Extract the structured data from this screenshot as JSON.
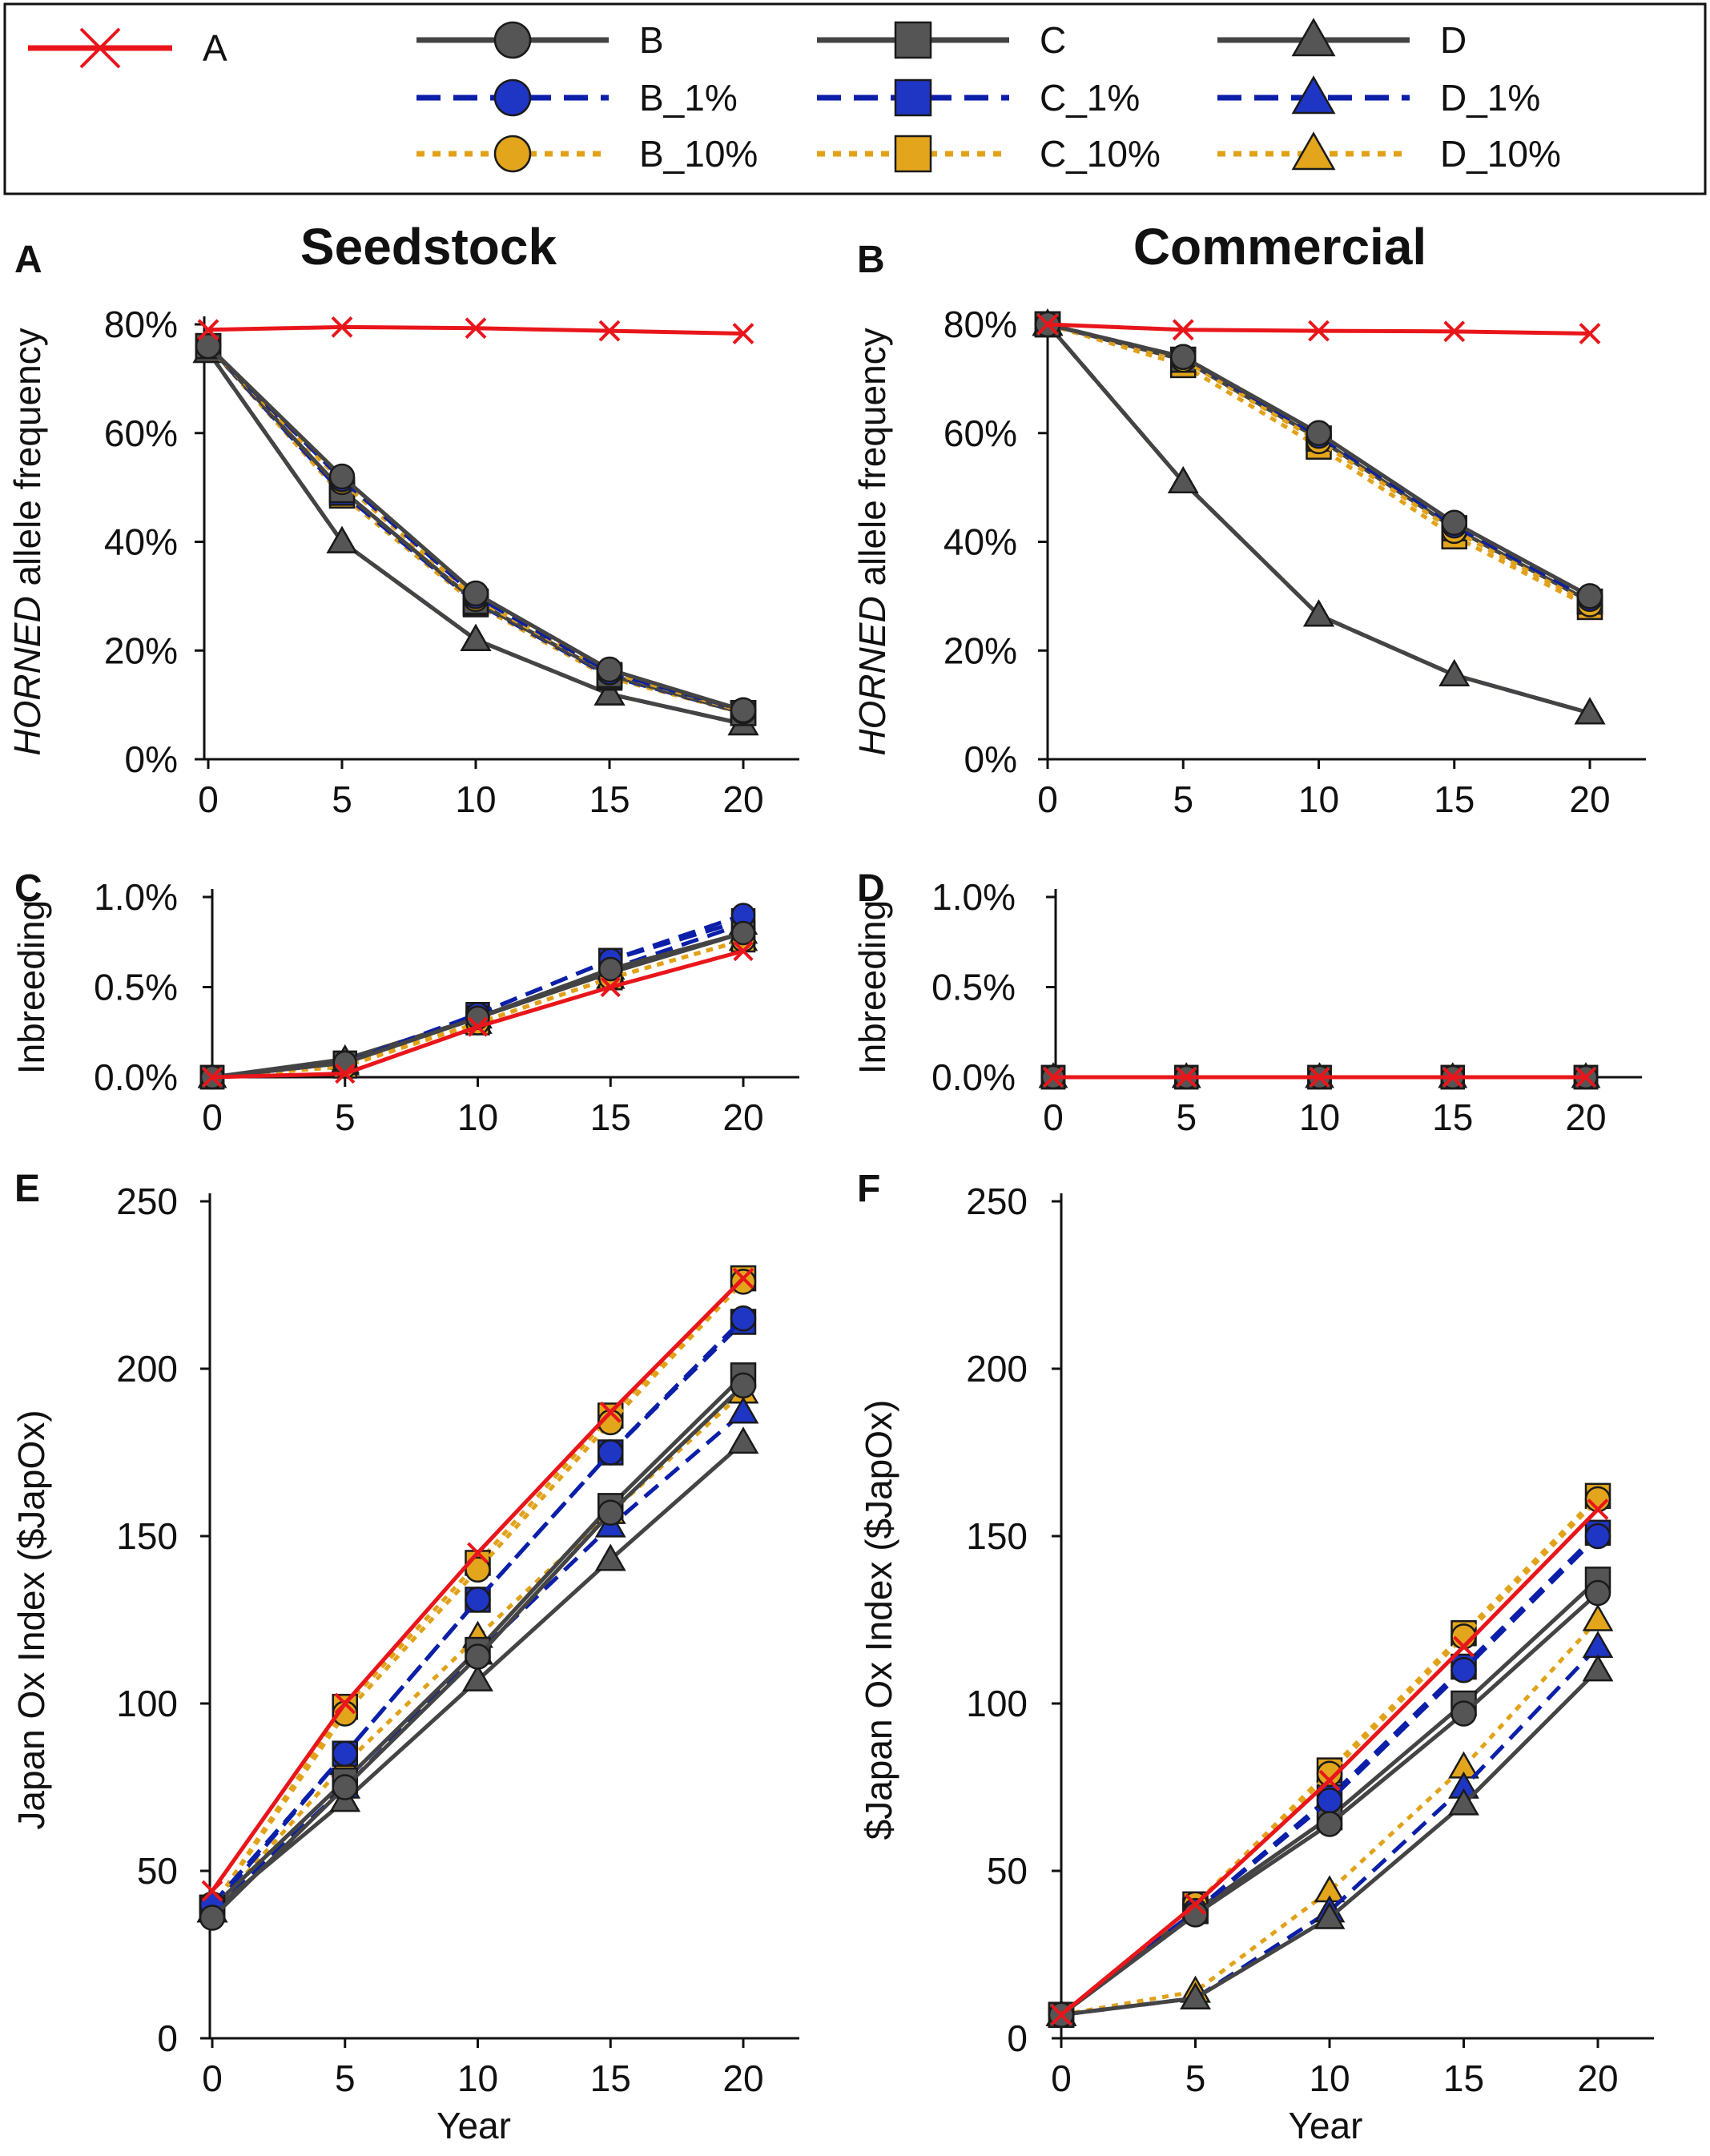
{
  "legend": {
    "entries": [
      {
        "key": "A",
        "label": "A"
      },
      {
        "key": "B",
        "label": "B"
      },
      {
        "key": "C",
        "label": "C"
      },
      {
        "key": "D",
        "label": "D"
      },
      {
        "key": "B_1%",
        "label": "B_1%"
      },
      {
        "key": "C_1%",
        "label": "C_1%"
      },
      {
        "key": "D_1%",
        "label": "D_1%"
      },
      {
        "key": "B_10%",
        "label": "B_10%"
      },
      {
        "key": "C_10%",
        "label": "C_10%"
      },
      {
        "key": "D_10%",
        "label": "D_10%"
      }
    ]
  },
  "styles": {
    "A": {
      "color": "#e8161b",
      "dash": "solid",
      "marker": "x"
    },
    "B": {
      "color": "#444444",
      "fill": "#555555",
      "dash": "solid",
      "marker": "circle"
    },
    "C": {
      "color": "#444444",
      "fill": "#555555",
      "dash": "solid",
      "marker": "square"
    },
    "D": {
      "color": "#444444",
      "fill": "#555555",
      "dash": "solid",
      "marker": "triangle"
    },
    "B_1%": {
      "color": "#0b1fa8",
      "fill": "#1f35c4",
      "dash": "dashed",
      "marker": "circle"
    },
    "C_1%": {
      "color": "#0b1fa8",
      "fill": "#1f35c4",
      "dash": "dashed",
      "marker": "square"
    },
    "D_1%": {
      "color": "#0b1fa8",
      "fill": "#1f35c4",
      "dash": "dashed",
      "marker": "triangle"
    },
    "B_10%": {
      "color": "#e1a21a",
      "fill": "#e2a51c",
      "dash": "dotted",
      "marker": "circle"
    },
    "C_10%": {
      "color": "#e1a21a",
      "fill": "#e2a51c",
      "dash": "dotted",
      "marker": "square"
    },
    "D_10%": {
      "color": "#e1a21a",
      "fill": "#e2a51c",
      "dash": "dotted",
      "marker": "triangle"
    }
  },
  "column_titles": {
    "left": "Seedstock",
    "right": "Commercial"
  },
  "chart_data": [
    {
      "panel": "A",
      "type": "line",
      "title": "Seedstock",
      "xlabel": "",
      "ylabel_italic": "HORNED",
      "ylabel_rest": " allele frequency",
      "x": [
        0,
        5,
        10,
        15,
        20
      ],
      "ylim": [
        0,
        80
      ],
      "yticks": [
        0,
        20,
        40,
        60,
        80
      ],
      "ytick_labels": [
        "0%",
        "20%",
        "40%",
        "60%",
        "80%"
      ],
      "xticks": [
        0,
        5,
        10,
        15,
        20
      ],
      "xtick_labels": [
        "0",
        "5",
        "10",
        "15",
        "20"
      ],
      "series": [
        {
          "name": "A",
          "values": [
            79,
            79.5,
            79.3,
            78.8,
            78.3
          ]
        },
        {
          "name": "B",
          "values": [
            76,
            52,
            30.5,
            16.5,
            9
          ]
        },
        {
          "name": "B_1%",
          "values": [
            76,
            51.5,
            30,
            16,
            9
          ]
        },
        {
          "name": "B_10%",
          "values": [
            76,
            51,
            29.5,
            16,
            8.8
          ]
        },
        {
          "name": "C",
          "values": [
            76,
            49.5,
            29,
            15.5,
            8.5
          ]
        },
        {
          "name": "C_1%",
          "values": [
            76,
            49,
            28.8,
            15.3,
            8.5
          ]
        },
        {
          "name": "C_10%",
          "values": [
            76,
            48.5,
            28.5,
            15,
            8.5
          ]
        },
        {
          "name": "D",
          "values": [
            75,
            40,
            22,
            12,
            6.5
          ]
        },
        {
          "name": "D_1%",
          "values": [
            75,
            40,
            22,
            12,
            6.5
          ]
        },
        {
          "name": "D_10%",
          "values": [
            75,
            40,
            22,
            12,
            6.5
          ]
        }
      ]
    },
    {
      "panel": "B",
      "type": "line",
      "title": "Commercial",
      "xlabel": "",
      "ylabel_italic": "HORNED",
      "ylabel_rest": " allele frequency",
      "x": [
        0,
        5,
        10,
        15,
        20
      ],
      "ylim": [
        0,
        80
      ],
      "yticks": [
        0,
        20,
        40,
        60,
        80
      ],
      "ytick_labels": [
        "0%",
        "20%",
        "40%",
        "60%",
        "80%"
      ],
      "xticks": [
        0,
        5,
        10,
        15,
        20
      ],
      "xtick_labels": [
        "0",
        "5",
        "10",
        "15",
        "20"
      ],
      "series": [
        {
          "name": "A",
          "values": [
            80,
            79,
            78.8,
            78.7,
            78.3
          ]
        },
        {
          "name": "B",
          "values": [
            80,
            74,
            60,
            43.5,
            30
          ]
        },
        {
          "name": "B_1%",
          "values": [
            80,
            74,
            59.5,
            43,
            29.5
          ]
        },
        {
          "name": "B_10%",
          "values": [
            80,
            73.5,
            58.5,
            42,
            28.5
          ]
        },
        {
          "name": "C",
          "values": [
            80,
            73.5,
            59,
            42.5,
            29
          ]
        },
        {
          "name": "C_1%",
          "values": [
            80,
            73.5,
            59,
            42.5,
            29
          ]
        },
        {
          "name": "C_10%",
          "values": [
            80,
            72.5,
            57.5,
            41,
            28
          ]
        },
        {
          "name": "D",
          "values": [
            80,
            51,
            26.5,
            15.5,
            8.5
          ]
        },
        {
          "name": "D_1%",
          "values": [
            80,
            51,
            26.5,
            15.5,
            8.5
          ]
        },
        {
          "name": "D_10%",
          "values": [
            80,
            51,
            26.5,
            15.5,
            8.5
          ]
        }
      ]
    },
    {
      "panel": "C",
      "type": "line",
      "xlabel": "",
      "ylabel": "Inbreeding",
      "x": [
        0,
        5,
        10,
        15,
        20
      ],
      "ylim": [
        0,
        1.0
      ],
      "yticks": [
        0,
        0.5,
        1.0
      ],
      "ytick_labels": [
        "0.0%",
        "0.5%",
        "1.0%"
      ],
      "xticks": [
        0,
        5,
        10,
        15,
        20
      ],
      "xtick_labels": [
        "0",
        "5",
        "10",
        "15",
        "20"
      ],
      "series": [
        {
          "name": "A",
          "values": [
            0,
            0.02,
            0.28,
            0.5,
            0.7
          ]
        },
        {
          "name": "B",
          "values": [
            0,
            0.08,
            0.33,
            0.6,
            0.8
          ]
        },
        {
          "name": "B_1%",
          "values": [
            0,
            0.08,
            0.35,
            0.65,
            0.9
          ]
        },
        {
          "name": "B_10%",
          "values": [
            0,
            0.06,
            0.3,
            0.55,
            0.76
          ]
        },
        {
          "name": "C",
          "values": [
            0,
            0.08,
            0.33,
            0.6,
            0.8
          ]
        },
        {
          "name": "C_1%",
          "values": [
            0,
            0.08,
            0.35,
            0.65,
            0.87
          ]
        },
        {
          "name": "C_10%",
          "values": [
            0,
            0.06,
            0.3,
            0.55,
            0.76
          ]
        },
        {
          "name": "D",
          "values": [
            0,
            0.1,
            0.33,
            0.58,
            0.8
          ]
        },
        {
          "name": "D_1%",
          "values": [
            0,
            0.08,
            0.33,
            0.6,
            0.85
          ]
        },
        {
          "name": "D_10%",
          "values": [
            0,
            0.07,
            0.3,
            0.55,
            0.76
          ]
        }
      ]
    },
    {
      "panel": "D",
      "type": "line",
      "xlabel": "",
      "ylabel": "Inbreeding",
      "x": [
        0,
        5,
        10,
        15,
        20
      ],
      "ylim": [
        0,
        1.0
      ],
      "yticks": [
        0,
        0.5,
        1.0
      ],
      "ytick_labels": [
        "0.0%",
        "0.5%",
        "1.0%"
      ],
      "xticks": [
        0,
        5,
        10,
        15,
        20
      ],
      "xtick_labels": [
        "0",
        "5",
        "10",
        "15",
        "20"
      ],
      "series": [
        {
          "name": "A",
          "values": [
            0,
            0,
            0,
            0,
            0
          ]
        },
        {
          "name": "B",
          "values": [
            0,
            0,
            0,
            0,
            0
          ]
        },
        {
          "name": "B_1%",
          "values": [
            0,
            0,
            0,
            0,
            0
          ]
        },
        {
          "name": "B_10%",
          "values": [
            0,
            0,
            0,
            0,
            0
          ]
        },
        {
          "name": "C",
          "values": [
            0,
            0,
            0,
            0,
            0
          ]
        },
        {
          "name": "C_1%",
          "values": [
            0,
            0,
            0,
            0,
            0
          ]
        },
        {
          "name": "C_10%",
          "values": [
            0,
            0,
            0,
            0,
            0
          ]
        },
        {
          "name": "D",
          "values": [
            0,
            0,
            0,
            0,
            0
          ]
        },
        {
          "name": "D_1%",
          "values": [
            0,
            0,
            0,
            0,
            0
          ]
        },
        {
          "name": "D_10%",
          "values": [
            0,
            0,
            0,
            0,
            0
          ]
        }
      ]
    },
    {
      "panel": "E",
      "type": "line",
      "xlabel": "Year",
      "ylabel": "Japan Ox Index ($JapOx)",
      "x": [
        0,
        5,
        10,
        15,
        20
      ],
      "ylim": [
        0,
        250
      ],
      "yticks": [
        0,
        50,
        100,
        150,
        200,
        250
      ],
      "ytick_labels": [
        "0",
        "50",
        "100",
        "150",
        "200",
        "250"
      ],
      "xticks": [
        0,
        5,
        10,
        15,
        20
      ],
      "xtick_labels": [
        "0",
        "5",
        "10",
        "15",
        "20"
      ],
      "series": [
        {
          "name": "A",
          "values": [
            44,
            100,
            145,
            187,
            227
          ]
        },
        {
          "name": "B",
          "values": [
            36,
            75,
            114,
            157,
            195
          ]
        },
        {
          "name": "B_1%",
          "values": [
            40,
            85,
            131,
            175,
            215
          ]
        },
        {
          "name": "B_10%",
          "values": [
            39,
            97,
            140,
            184,
            226
          ]
        },
        {
          "name": "C",
          "values": [
            39,
            77,
            116,
            159,
            198
          ]
        },
        {
          "name": "C_1%",
          "values": [
            39,
            85,
            131,
            175,
            214
          ]
        },
        {
          "name": "C_10%",
          "values": [
            39,
            99,
            142,
            186,
            227
          ]
        },
        {
          "name": "D",
          "values": [
            38,
            71,
            107,
            143,
            178
          ]
        },
        {
          "name": "D_1%",
          "values": [
            38,
            75,
            115,
            153,
            187
          ]
        },
        {
          "name": "D_10%",
          "values": [
            38,
            82,
            120,
            157,
            193
          ]
        }
      ]
    },
    {
      "panel": "F",
      "type": "line",
      "xlabel": "Year",
      "ylabel": "$Japan Ox Index ($JapOx)",
      "x": [
        0,
        5,
        10,
        15,
        20
      ],
      "ylim": [
        0,
        250
      ],
      "yticks": [
        0,
        50,
        100,
        150,
        200,
        250
      ],
      "ytick_labels": [
        "0",
        "50",
        "100",
        "150",
        "200",
        "250"
      ],
      "xticks": [
        0,
        5,
        10,
        15,
        20
      ],
      "xtick_labels": [
        "0",
        "5",
        "10",
        "15",
        "20"
      ],
      "series": [
        {
          "name": "A",
          "values": [
            7,
            40,
            77,
            117,
            158
          ]
        },
        {
          "name": "B",
          "values": [
            7,
            37,
            64,
            97,
            133
          ]
        },
        {
          "name": "B_1%",
          "values": [
            7,
            38,
            71,
            110,
            150
          ]
        },
        {
          "name": "B_10%",
          "values": [
            7,
            40,
            79,
            120,
            161
          ]
        },
        {
          "name": "C",
          "values": [
            7,
            38,
            66,
            100,
            137
          ]
        },
        {
          "name": "C_1%",
          "values": [
            7,
            38,
            72,
            111,
            151
          ]
        },
        {
          "name": "C_10%",
          "values": [
            7,
            40,
            80,
            121,
            162
          ]
        },
        {
          "name": "D",
          "values": [
            7,
            12,
            36,
            70,
            110
          ]
        },
        {
          "name": "D_1%",
          "values": [
            7,
            12,
            38,
            75,
            117
          ]
        },
        {
          "name": "D_10%",
          "values": [
            7,
            14,
            44,
            81,
            125
          ]
        }
      ]
    }
  ]
}
